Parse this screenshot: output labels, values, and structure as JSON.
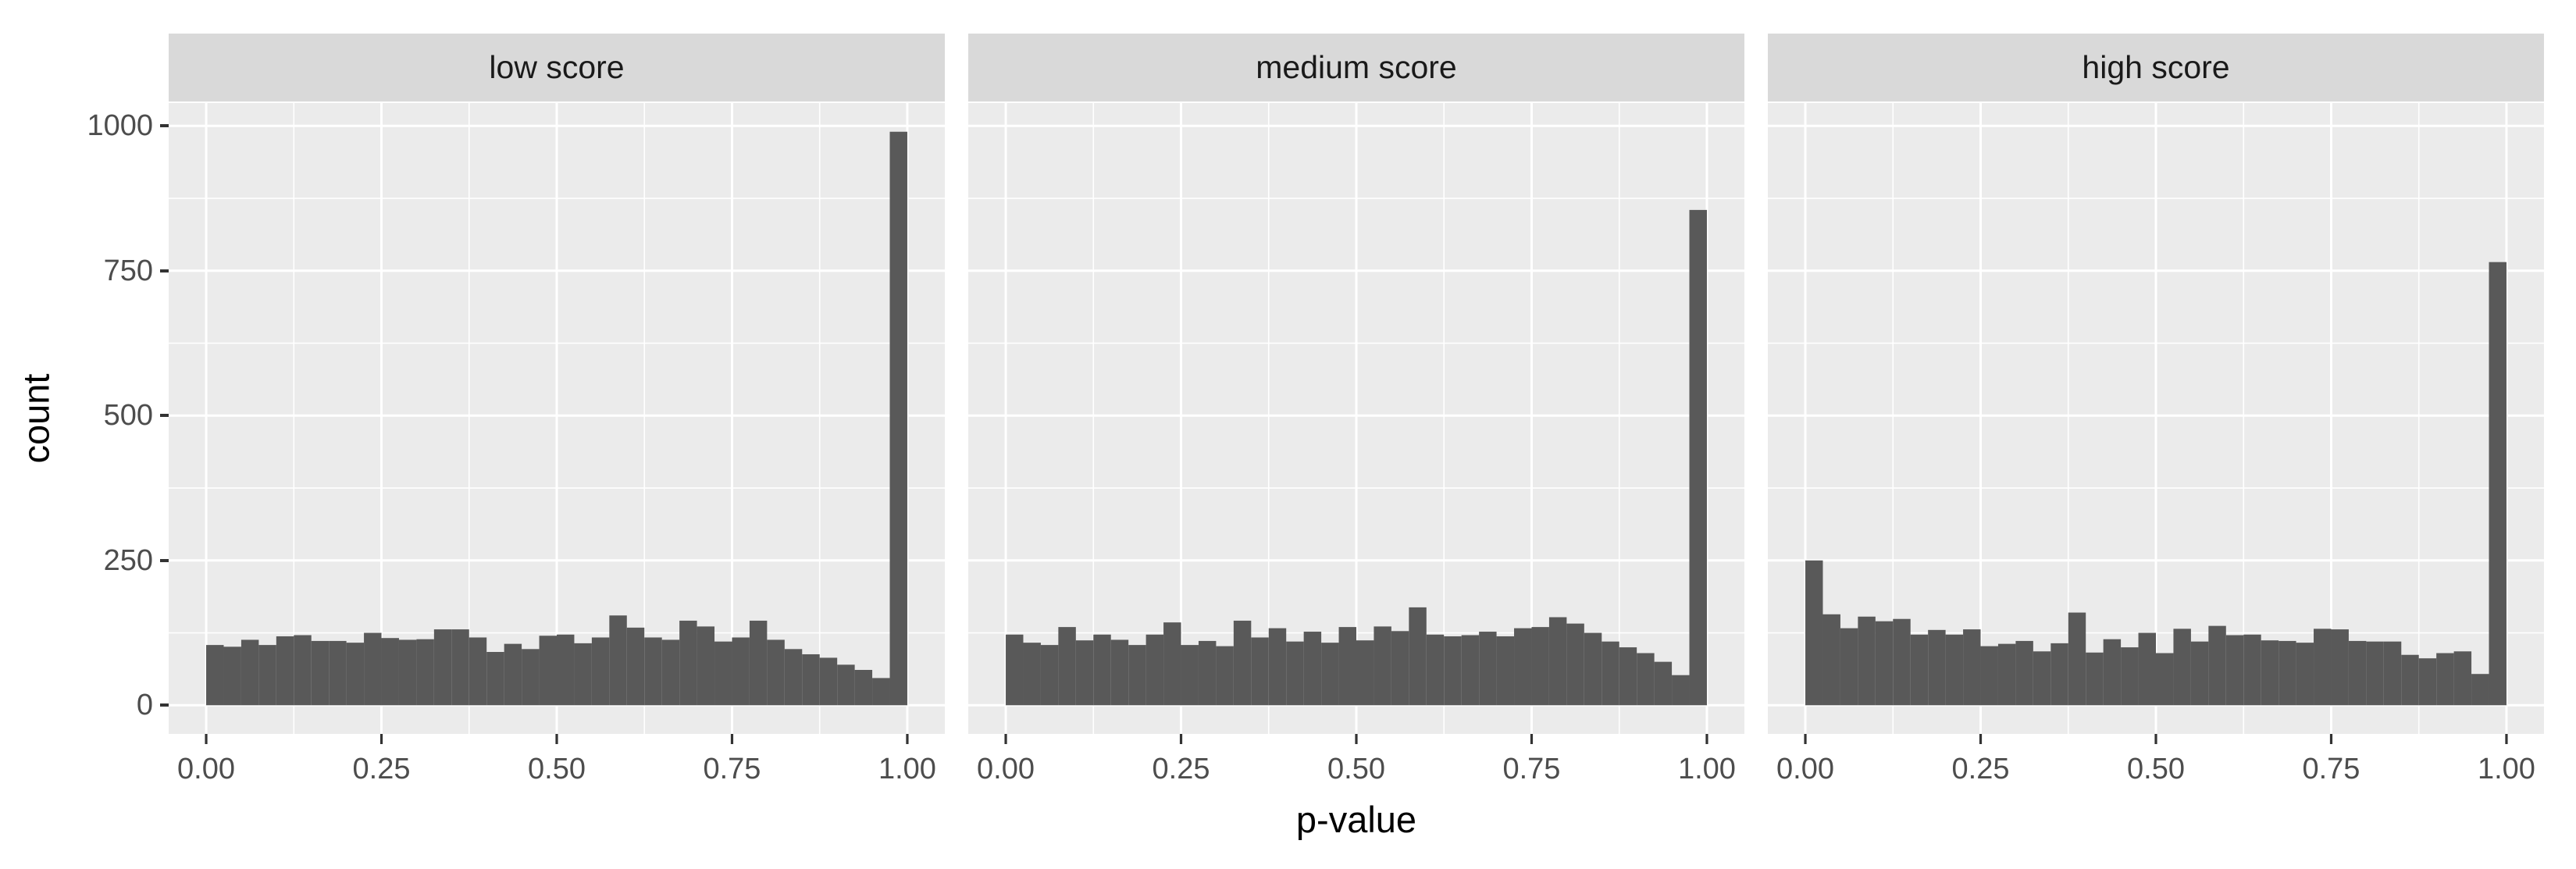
{
  "chart_data": {
    "type": "bar",
    "subtype": "faceted-histogram",
    "xlabel": "p-value",
    "ylabel": "count",
    "x_tick_labels": [
      "0.00",
      "0.25",
      "0.50",
      "0.75",
      "1.00"
    ],
    "x_tick_values": [
      0,
      0.25,
      0.5,
      0.75,
      1.0
    ],
    "y_tick_labels": [
      "0",
      "250",
      "500",
      "750",
      "1000"
    ],
    "y_tick_values": [
      0,
      250,
      500,
      750,
      1000
    ],
    "xlim": [
      0,
      1
    ],
    "ylim": [
      0,
      1000
    ],
    "grid": "on",
    "legend": "none",
    "bin_width": 0.025,
    "bin_start": 0,
    "colors": {
      "bar": "#595959",
      "panel_background": "#EBEBEB",
      "strip_background": "#D9D9D9",
      "gridline": "#FFFFFF",
      "tick_label": "#4D4D4D",
      "axis_title": "#000000",
      "tick_mark": "#333333"
    },
    "facets": [
      {
        "label": "low score",
        "counts": [
          104,
          101,
          113,
          104,
          119,
          121,
          111,
          111,
          108,
          125,
          116,
          113,
          114,
          131,
          131,
          117,
          92,
          106,
          97,
          120,
          122,
          107,
          117,
          155,
          134,
          117,
          113,
          146,
          136,
          110,
          117,
          146,
          113,
          97,
          88,
          82,
          70,
          61,
          47,
          990
        ]
      },
      {
        "label": "medium score",
        "counts": [
          122,
          108,
          104,
          135,
          112,
          122,
          113,
          104,
          122,
          143,
          104,
          111,
          102,
          146,
          117,
          133,
          110,
          127,
          108,
          135,
          112,
          136,
          128,
          169,
          122,
          119,
          121,
          127,
          119,
          133,
          135,
          152,
          141,
          125,
          110,
          100,
          90,
          75,
          52,
          855
        ]
      },
      {
        "label": "high score",
        "counts": [
          250,
          157,
          133,
          153,
          145,
          149,
          122,
          130,
          122,
          131,
          102,
          106,
          111,
          93,
          107,
          160,
          91,
          114,
          100,
          125,
          90,
          132,
          110,
          137,
          121,
          122,
          112,
          111,
          108,
          132,
          131,
          111,
          110,
          110,
          87,
          81,
          90,
          93,
          54,
          765
        ]
      }
    ]
  }
}
